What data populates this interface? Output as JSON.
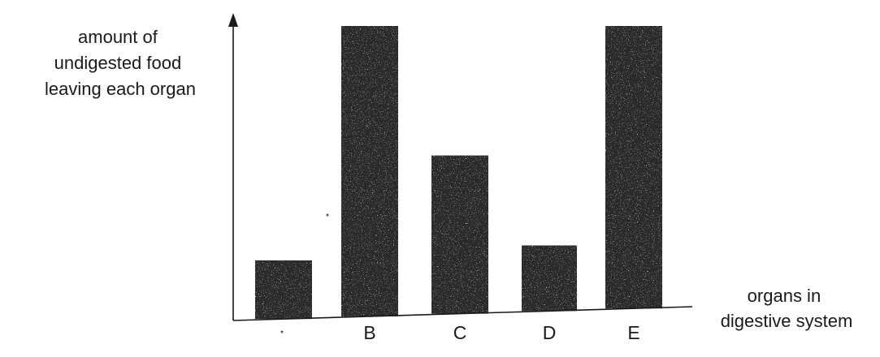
{
  "chart_data": {
    "type": "bar",
    "title": "",
    "ylabel_lines": [
      "amount of",
      "undigested food",
      "leaving each organ"
    ],
    "xlabel_lines": [
      "organs in",
      "digestive system"
    ],
    "categories": [
      "",
      "B",
      "C",
      "D",
      "E"
    ],
    "values": [
      20,
      100,
      55,
      23,
      100
    ],
    "ylim": [
      0,
      100
    ],
    "grid": false,
    "y_ticks_shown": false,
    "bar_color": "#2b2b2b",
    "axis_color": "#1a1a1a"
  }
}
